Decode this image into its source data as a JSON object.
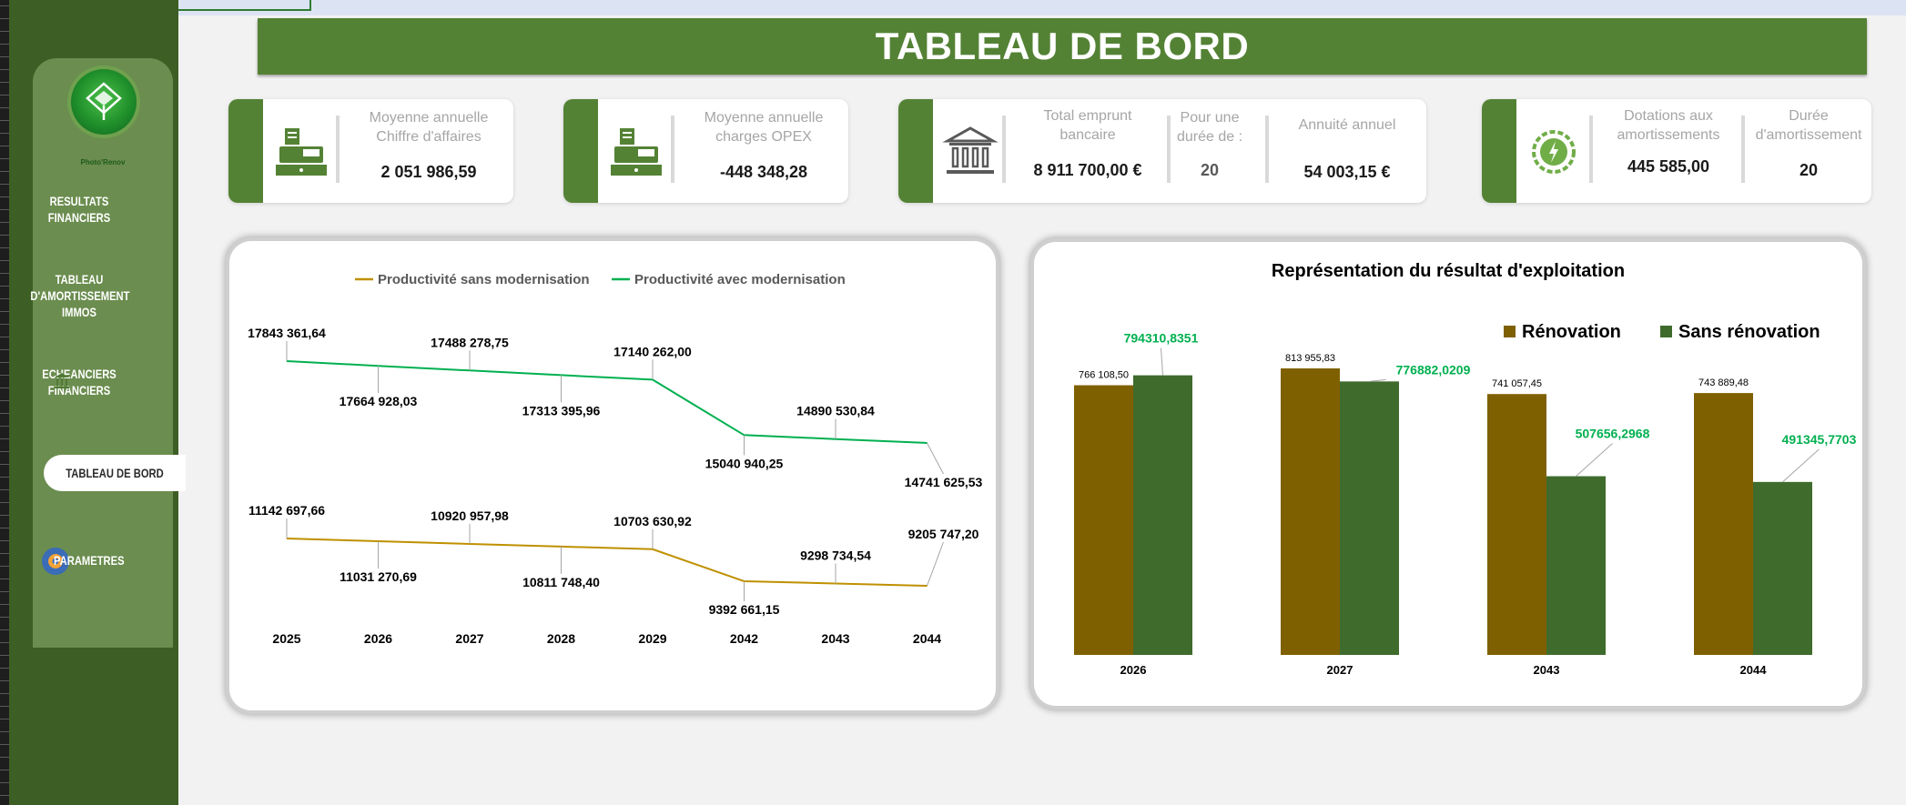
{
  "app": {
    "title": "TABLEAU DE BORD",
    "logo_caption": "Photo'Renov"
  },
  "sidebar": {
    "items": [
      {
        "label": "RESULTATS FINANCIERS"
      },
      {
        "label": "TABLEAU D'AMORTISSEMENT IMMOS"
      },
      {
        "label": "ECHEANCIERS FINANCIERS"
      },
      {
        "label": "TABLEAU DE BORD"
      },
      {
        "label": "PARAMETRES"
      }
    ]
  },
  "kpis": {
    "ca": {
      "label": "Moyenne annuelle Chiffre d'affaires",
      "value": "2 051 986,59",
      "icon": "cash-register-icon"
    },
    "opex": {
      "label": "Moyenne annuelle charges OPEX",
      "value": "-448 348,28",
      "icon": "cash-register-icon"
    },
    "emprunt": {
      "label": "Total emprunt bancaire",
      "value": "8 911 700,00 €",
      "duree_label": "Pour une durée de :",
      "duree_value": "20",
      "annuite_label": "Annuité annuel",
      "annuite_value": "54 003,15 €",
      "icon": "bank-icon"
    },
    "amort": {
      "label": "Dotations aux amortissements",
      "value": "445 585,00",
      "duree_label": "Durée d'amortissement",
      "duree_value": "20",
      "icon": "eco-energy-icon"
    }
  },
  "chart_data": [
    {
      "type": "line",
      "title": "",
      "legend_position": "top",
      "categories": [
        "2025",
        "2026",
        "2027",
        "2028",
        "2029",
        "2042",
        "2043",
        "2044"
      ],
      "series": [
        {
          "name": "Productivité sans modernisation",
          "color": "#bf9000",
          "values": [
            11142697.66,
            11031270.69,
            10920957.98,
            10811748.4,
            10703630.92,
            9392661.15,
            9298734.54,
            9205747.2
          ],
          "labels": [
            "11142 697,66",
            "11031 270,69",
            "10920 957,98",
            "10811 748,40",
            "10703 630,92",
            "9392 661,15",
            "9298 734,54",
            "9205 747,20"
          ]
        },
        {
          "name": "Productivité avec modernisation",
          "color": "#00b050",
          "values": [
            17843361.64,
            17664928.03,
            17488278.75,
            17313395.96,
            17140262.0,
            15040940.25,
            14890530.84,
            14741625.53
          ],
          "labels": [
            "17843 361,64",
            "17664 928,03",
            "17488 278,75",
            "17313 395,96",
            "17140 262,00",
            "15040 940,25",
            "14890 530,84",
            "14741 625,53"
          ]
        }
      ]
    },
    {
      "type": "bar",
      "title": "Représentation du résultat d'exploitation",
      "legend_position": "top-right",
      "categories": [
        "2026",
        "2027",
        "2043",
        "2044"
      ],
      "series": [
        {
          "name": "Rénovation",
          "color": "#7f6000",
          "label_color": "#000000",
          "values": [
            766108.5,
            813955.83,
            741057.45,
            743889.48
          ],
          "labels": [
            "766 108,50",
            "813 955,83",
            "741 057,45",
            "743 889,48"
          ]
        },
        {
          "name": "Sans rénovation",
          "color": "#3f6b2c",
          "label_color": "#00b050",
          "values": [
            794310.8351,
            776882.0209,
            507656.2968,
            491345.7703
          ],
          "labels": [
            "794310,8351",
            "776882,0209",
            "507656,2968",
            "491345,7703"
          ]
        }
      ]
    }
  ]
}
